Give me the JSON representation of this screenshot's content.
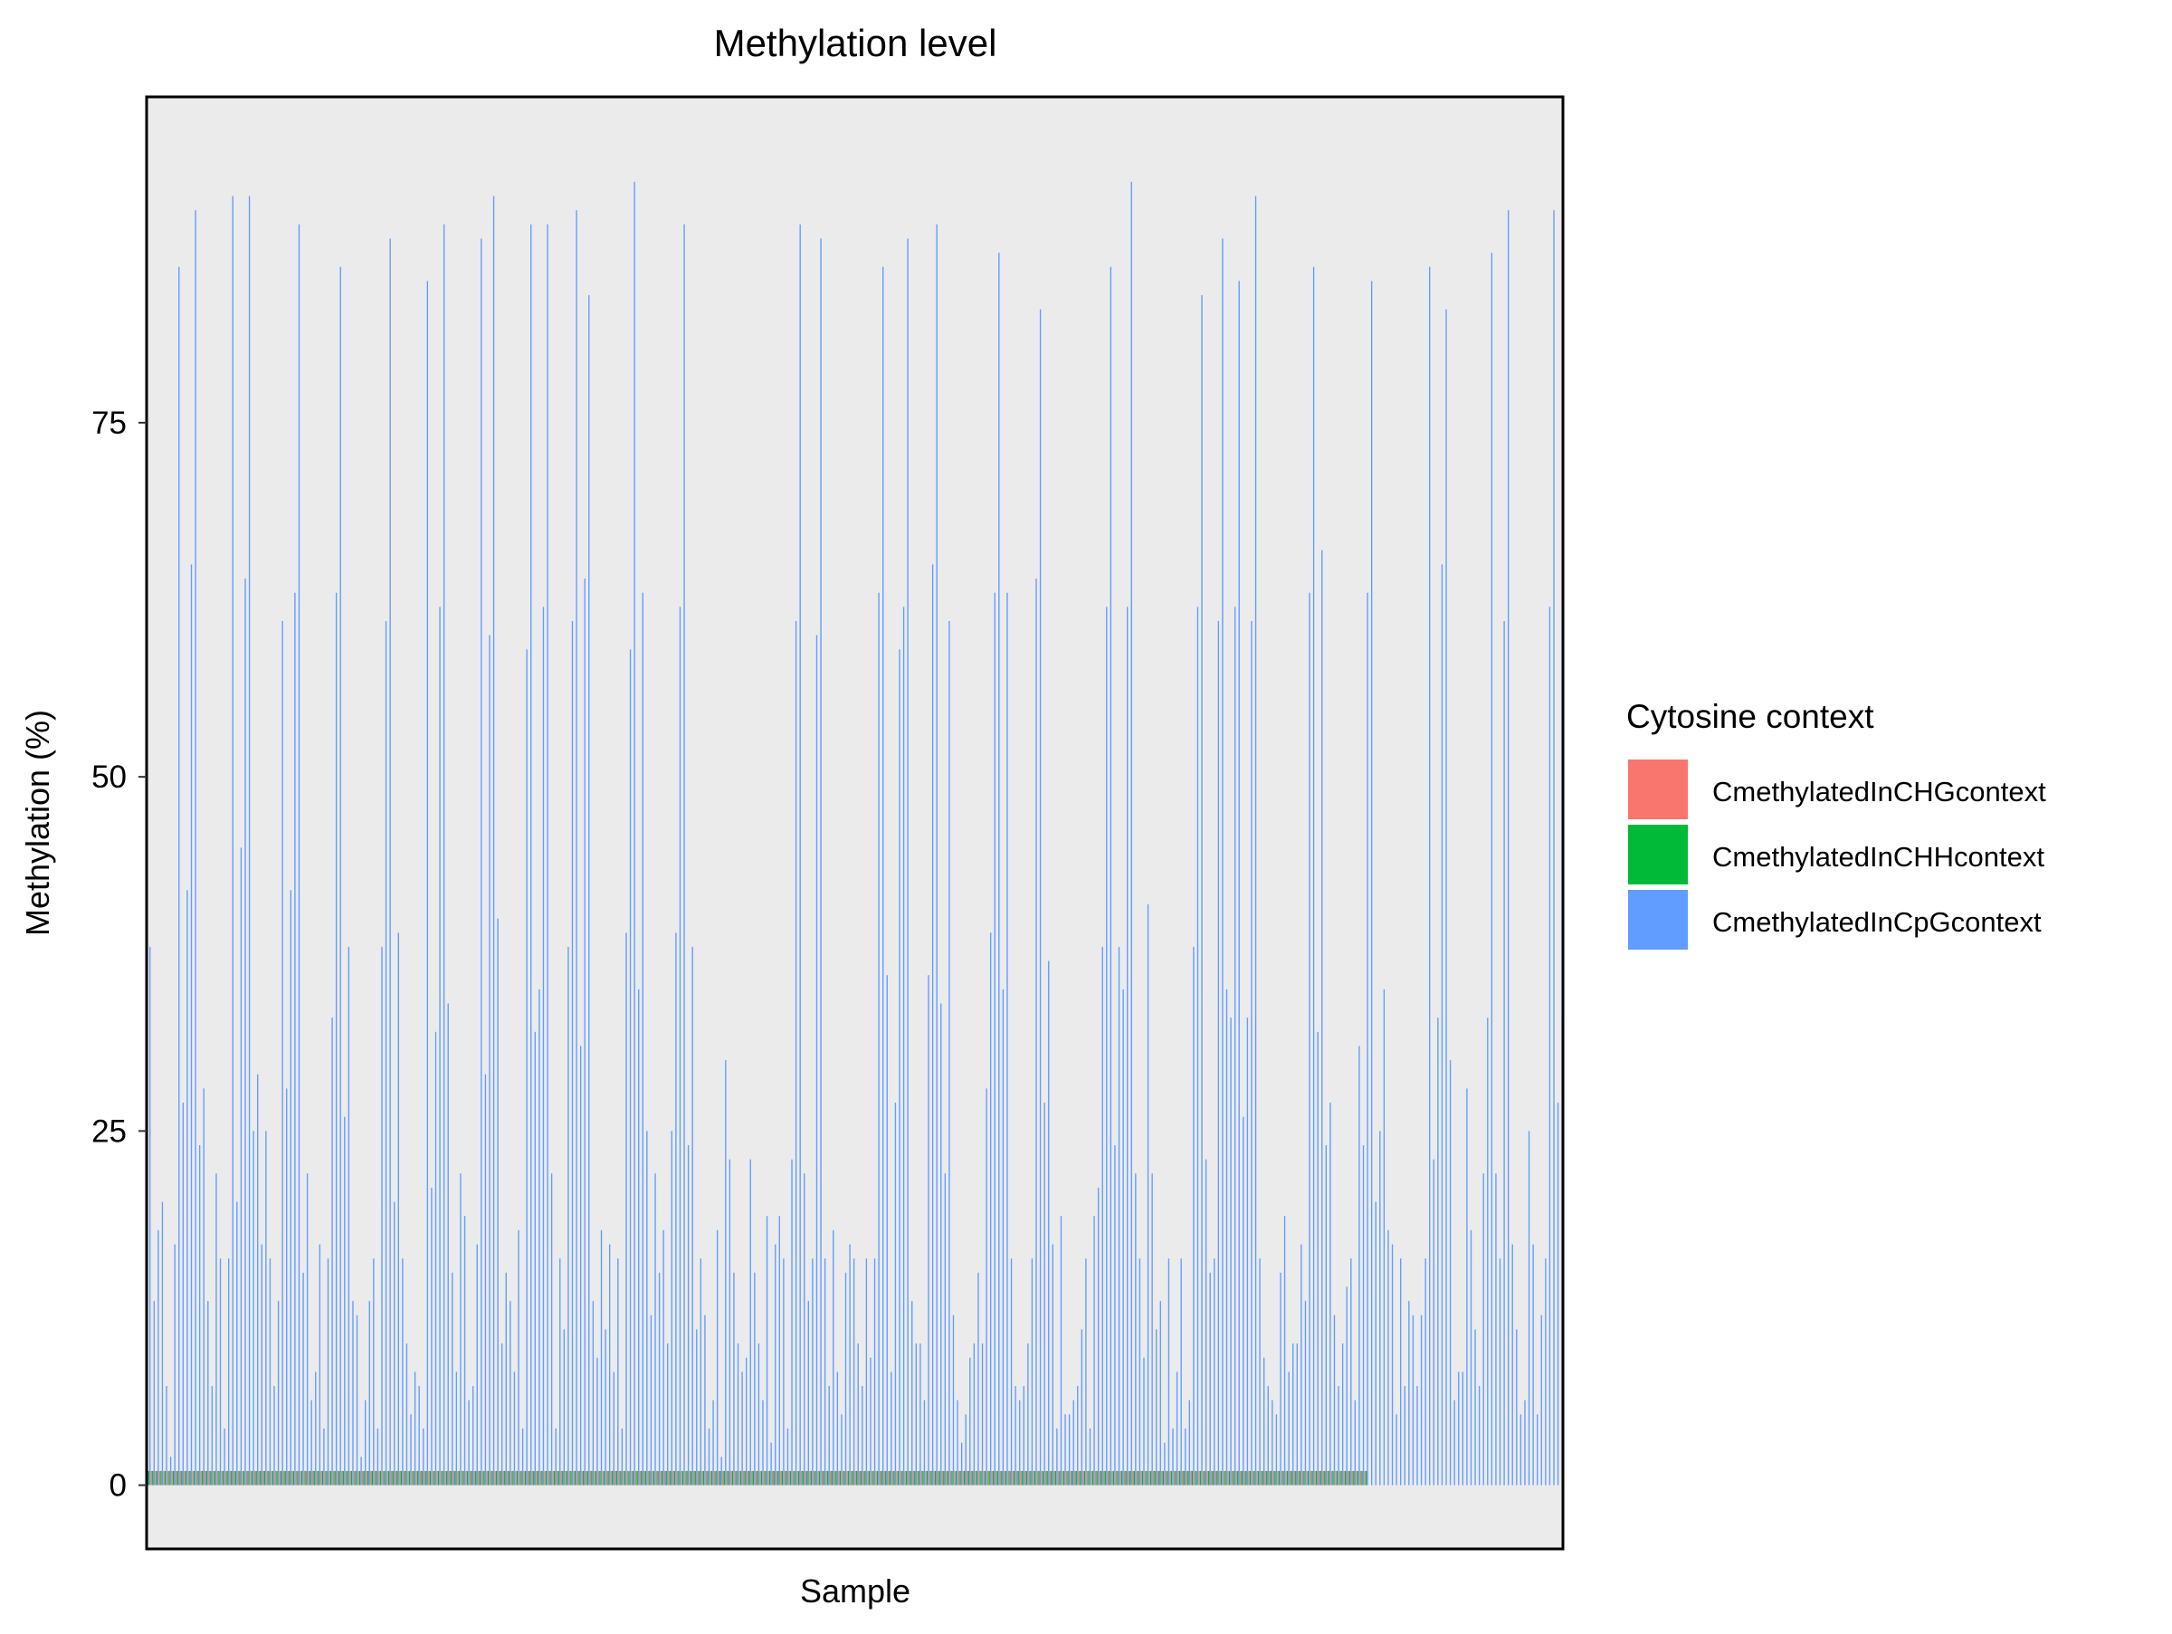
{
  "chart_data": {
    "type": "bar",
    "title": "Methylation level",
    "xlabel": "Sample",
    "ylabel": "Methylation (%)",
    "ylim": [
      -4.5,
      98
    ],
    "yticks": [
      0,
      25,
      50,
      75
    ],
    "x_tick_labels_shown": false,
    "grid": false,
    "panel_background": "#EBEBEB",
    "legend_position": "right",
    "legend_title": "Cytosine context",
    "series": [
      {
        "name": "CmethylatedInCHGcontext",
        "color": "#F8766D",
        "values": [
          1,
          1,
          1,
          1,
          1,
          1,
          1,
          1,
          1,
          1,
          1,
          1,
          1,
          1,
          1,
          1,
          1,
          1,
          1,
          1,
          1,
          1,
          1,
          1,
          1,
          1,
          1,
          1,
          1,
          1,
          1,
          1,
          1,
          1,
          1,
          1,
          1,
          1,
          1,
          1,
          1,
          1,
          1,
          1,
          1,
          1,
          1,
          1,
          1,
          1,
          1,
          1,
          1,
          1,
          1,
          1,
          1,
          1,
          1,
          1,
          1,
          1,
          1,
          1,
          1,
          1,
          1,
          1,
          1,
          1,
          1,
          1,
          1,
          1,
          1,
          1,
          1,
          1,
          1,
          1,
          1,
          1,
          1,
          1,
          1,
          1,
          1,
          1,
          1,
          1,
          1,
          1,
          1,
          1,
          1,
          1,
          1,
          1,
          1,
          1,
          1,
          1,
          1,
          1,
          1,
          1,
          1,
          1,
          1,
          1,
          1,
          1,
          1,
          1,
          1,
          1,
          1,
          1,
          1,
          1,
          1,
          1,
          1,
          1,
          1,
          1,
          1,
          1,
          1,
          1,
          1,
          1,
          1,
          1,
          1,
          1,
          1,
          1,
          1,
          1,
          1,
          1,
          1,
          1,
          1,
          1,
          1,
          1,
          1,
          1,
          1,
          1,
          1,
          1,
          1,
          1,
          1,
          1,
          1,
          1,
          1,
          1,
          1,
          1,
          1,
          1,
          1,
          1,
          1,
          1,
          1,
          1,
          1,
          1,
          1,
          1,
          1,
          1,
          1,
          1,
          1,
          1,
          1,
          1,
          1,
          1,
          1,
          1,
          1,
          1,
          1,
          1,
          1,
          1,
          1,
          1,
          1,
          1,
          1,
          1,
          1,
          1,
          1,
          1,
          1,
          1,
          1,
          1,
          1,
          1,
          1,
          1,
          1,
          1,
          1,
          1,
          1,
          1,
          1,
          1,
          1,
          1,
          1,
          1,
          1,
          1,
          1,
          1,
          1,
          1,
          1,
          1,
          1,
          1,
          1,
          1,
          1,
          1,
          1,
          1,
          1,
          1,
          1,
          1,
          1,
          1,
          1,
          1,
          1,
          1,
          1,
          1,
          1,
          1,
          1,
          1,
          1,
          1,
          1,
          1,
          1,
          1,
          1,
          1,
          1,
          1,
          1,
          1,
          1,
          1,
          1,
          1,
          1,
          1,
          1,
          1,
          1,
          1,
          1,
          1,
          1,
          1,
          1,
          1,
          1,
          1,
          1,
          1,
          1,
          1,
          1,
          1,
          1,
          1,
          1
        ]
      },
      {
        "name": "CmethylatedInCHHcontext",
        "color": "#00BA38",
        "values": [
          1,
          1,
          1,
          1,
          1,
          1,
          1,
          1,
          1,
          1,
          1,
          1,
          1,
          1,
          1,
          1,
          1,
          1,
          1,
          1,
          1,
          1,
          1,
          1,
          1,
          1,
          1,
          1,
          1,
          1,
          1,
          1,
          1,
          1,
          1,
          1,
          1,
          1,
          1,
          1,
          1,
          1,
          1,
          1,
          1,
          1,
          1,
          1,
          1,
          1,
          1,
          1,
          1,
          1,
          1,
          1,
          1,
          1,
          1,
          1,
          1,
          1,
          1,
          1,
          1,
          1,
          1,
          1,
          1,
          1,
          1,
          1,
          1,
          1,
          1,
          1,
          1,
          1,
          1,
          1,
          1,
          1,
          1,
          1,
          1,
          1,
          1,
          1,
          1,
          1,
          1,
          1,
          1,
          1,
          1,
          1,
          1,
          1,
          1,
          1,
          1,
          1,
          1,
          1,
          1,
          1,
          1,
          1,
          1,
          1,
          1,
          1,
          1,
          1,
          1,
          1,
          1,
          1,
          1,
          1,
          1,
          1,
          1,
          1,
          1,
          1,
          1,
          1,
          1,
          1,
          1,
          1,
          1,
          1,
          1,
          1,
          1,
          1,
          1,
          1,
          1,
          1,
          1,
          1,
          1,
          1,
          1,
          1,
          1,
          1,
          1,
          1,
          1,
          1,
          1,
          1,
          1,
          1,
          1,
          1,
          1,
          1,
          1,
          1,
          1,
          1,
          1,
          1,
          1,
          1,
          1,
          1,
          1,
          1,
          1,
          1,
          1,
          1,
          1,
          1,
          1,
          1,
          1,
          1,
          1,
          1,
          1,
          1,
          1,
          1,
          1,
          1,
          1,
          1,
          1,
          1,
          1,
          1,
          1,
          1,
          1,
          1,
          1,
          1,
          1,
          1,
          1,
          1,
          1,
          1,
          1,
          1,
          1,
          1,
          1,
          1,
          1,
          1,
          1,
          1,
          1,
          1,
          1,
          1,
          1,
          1,
          1,
          1,
          1,
          1,
          1,
          1,
          1,
          1,
          1,
          1,
          1,
          1,
          1,
          1,
          1,
          1,
          1,
          1,
          1,
          1,
          1,
          1,
          1,
          1,
          1,
          1,
          1,
          1,
          1,
          1,
          1,
          1,
          1,
          1,
          1,
          1,
          1,
          1,
          1,
          1,
          1,
          1,
          1,
          1,
          1,
          1,
          1,
          1,
          1,
          1,
          1,
          1,
          1,
          1,
          1,
          1,
          1,
          1,
          1,
          1,
          1,
          1,
          1,
          1,
          1,
          1,
          1,
          1,
          1
        ]
      },
      {
        "name": "CmethylatedInCpGcontext",
        "color": "#619CFF",
        "values": [
          38,
          13,
          18,
          20,
          7,
          2,
          17,
          86,
          27,
          42,
          65,
          90,
          24,
          28,
          13,
          7,
          22,
          16,
          4,
          16,
          91,
          20,
          45,
          64,
          91,
          25,
          29,
          17,
          25,
          16,
          7,
          13,
          61,
          28,
          42,
          63,
          89,
          15,
          22,
          6,
          8,
          17,
          4,
          16,
          33,
          63,
          86,
          26,
          38,
          13,
          12,
          2,
          6,
          13,
          16,
          4,
          38,
          61,
          88,
          20,
          39,
          16,
          10,
          5,
          8,
          7,
          4,
          85,
          21,
          32,
          62,
          89,
          34,
          15,
          8,
          22,
          19,
          6,
          7,
          17,
          88,
          29,
          60,
          91,
          40,
          10,
          15,
          13,
          8,
          18,
          4,
          59,
          89,
          32,
          35,
          62,
          89,
          22,
          4,
          16,
          11,
          38,
          61,
          90,
          31,
          64,
          84,
          13,
          9,
          18,
          11,
          17,
          8,
          16,
          4,
          39,
          59,
          92,
          35,
          63,
          25,
          12,
          22,
          15,
          18,
          10,
          25,
          39,
          62,
          89,
          24,
          38,
          11,
          16,
          12,
          4,
          6,
          18,
          2,
          30,
          23,
          15,
          10,
          8,
          9,
          23,
          15,
          10,
          6,
          19,
          3,
          17,
          19,
          16,
          4,
          23,
          61,
          89,
          22,
          13,
          16,
          60,
          88,
          16,
          7,
          18,
          8,
          5,
          15,
          17,
          16,
          10,
          7,
          16,
          9,
          16,
          63,
          86,
          36,
          8,
          27,
          59,
          62,
          88,
          13,
          10,
          10,
          6,
          36,
          65,
          89,
          34,
          22,
          61,
          12,
          6,
          3,
          5,
          9,
          10,
          15,
          10,
          28,
          39,
          63,
          87,
          35,
          63,
          16,
          7,
          6,
          7,
          10,
          16,
          64,
          83,
          27,
          37,
          17,
          4,
          19,
          5,
          5,
          6,
          7,
          11,
          16,
          4,
          19,
          21,
          38,
          62,
          86,
          24,
          38,
          35,
          62,
          92,
          22,
          16,
          9,
          41,
          22,
          11,
          13,
          3,
          16,
          4,
          8,
          16,
          4,
          6,
          38,
          62,
          84,
          23,
          15,
          16,
          61,
          88,
          35,
          33,
          62,
          85,
          26,
          33,
          61,
          91,
          16,
          9,
          7,
          6,
          5,
          15,
          19,
          8,
          10,
          10,
          17,
          13,
          63,
          86,
          32,
          66,
          24,
          27,
          12,
          7,
          10,
          14,
          16,
          6,
          31,
          24,
          63,
          85,
          20,
          25,
          35,
          18,
          17,
          5,
          16,
          7,
          13,
          12,
          7,
          12,
          16,
          86,
          23,
          33,
          65,
          83,
          30,
          6,
          8,
          8,
          28,
          18,
          11,
          7,
          22,
          33,
          87,
          22,
          16,
          61,
          90,
          17,
          11,
          5,
          6,
          25,
          17,
          5,
          12,
          16,
          62,
          90,
          27,
          33
        ]
      }
    ]
  }
}
